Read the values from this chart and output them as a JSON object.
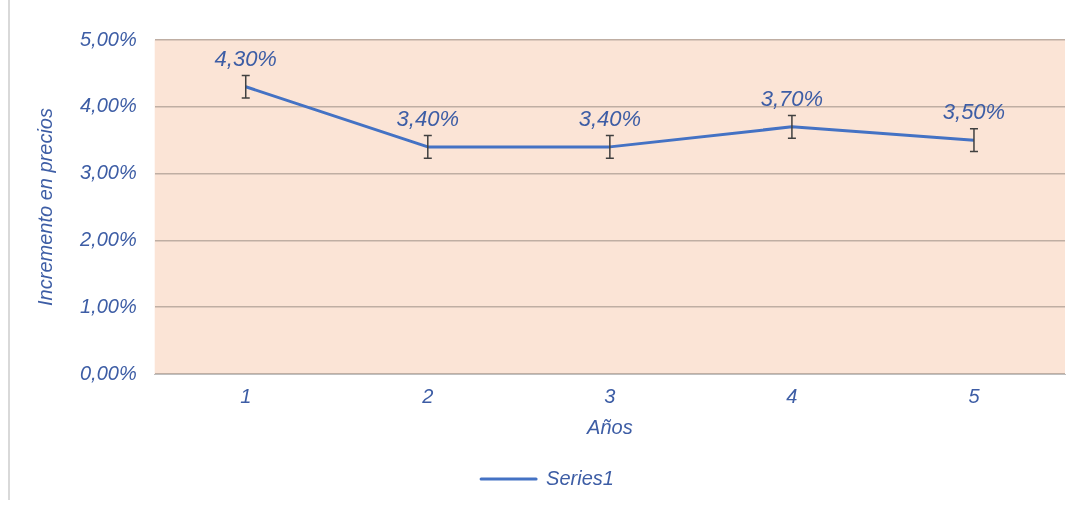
{
  "chart_data": {
    "type": "line",
    "xlabel": "Años",
    "ylabel": "Incremento en precios",
    "categories": [
      "1",
      "2",
      "3",
      "4",
      "5"
    ],
    "series": [
      {
        "name": "Series1",
        "color": "#4472c4",
        "values": [
          4.3,
          3.4,
          3.4,
          3.7,
          3.5
        ],
        "errors": [
          0.17,
          0.17,
          0.17,
          0.17,
          0.17
        ],
        "value_labels": [
          "4,30%",
          "3,40%",
          "3,40%",
          "3,70%",
          "3,50%"
        ]
      }
    ],
    "ylim": [
      0,
      5
    ],
    "yticks": [
      {
        "value": 0,
        "label": "0,00%"
      },
      {
        "value": 1,
        "label": "1,00%"
      },
      {
        "value": 2,
        "label": "2,00%"
      },
      {
        "value": 3,
        "label": "3,00%"
      },
      {
        "value": 4,
        "label": "4,00%"
      },
      {
        "value": 5,
        "label": "5,00%"
      }
    ],
    "grid": "y",
    "legend": "bottom",
    "marker": "none",
    "line_style": "solid"
  }
}
